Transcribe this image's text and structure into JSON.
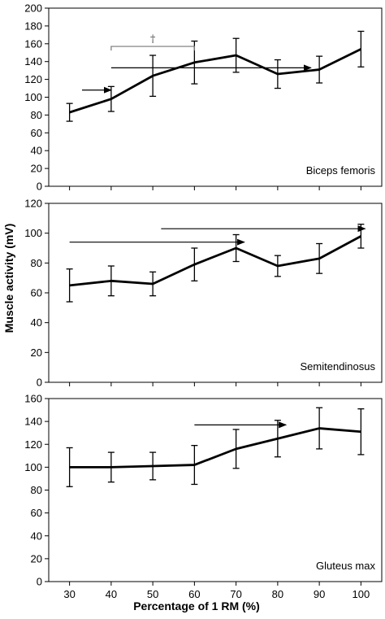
{
  "chart_data": {
    "type": "line",
    "ylabel": "Muscle activity (mV)",
    "xlabel": "Percentage of 1 RM (%)",
    "x": [
      30,
      40,
      50,
      60,
      70,
      80,
      90,
      100
    ],
    "xlim": [
      25,
      105
    ],
    "panels": [
      {
        "label": "Biceps femoris",
        "ylim": [
          0,
          200
        ],
        "yticks": [
          0,
          20,
          40,
          60,
          80,
          100,
          120,
          140,
          160,
          180,
          200
        ],
        "values": [
          83,
          98,
          124,
          139,
          147,
          126,
          131,
          154
        ],
        "errors": [
          10,
          14,
          23,
          24,
          19,
          16,
          15,
          20
        ],
        "arrows": [
          {
            "from": 33,
            "to": 40,
            "y": 108
          },
          {
            "from": 40,
            "to": 88,
            "y": 133
          }
        ],
        "bracket": {
          "from": 40,
          "to": 60,
          "y": 157,
          "symbol": "†"
        }
      },
      {
        "label": "Semitendinosus",
        "ylim": [
          0,
          120
        ],
        "yticks": [
          0,
          20,
          40,
          60,
          80,
          100,
          120
        ],
        "values": [
          65,
          68,
          66,
          79,
          90,
          78,
          83,
          98
        ],
        "errors": [
          11,
          10,
          8,
          11,
          9,
          7,
          10,
          8
        ],
        "arrows": [
          {
            "from": 30,
            "to": 72,
            "y": 94
          },
          {
            "from": 52,
            "to": 101,
            "y": 103
          }
        ]
      },
      {
        "label": "Gluteus max",
        "ylim": [
          0,
          160
        ],
        "yticks": [
          0,
          20,
          40,
          60,
          80,
          100,
          120,
          140,
          160
        ],
        "values": [
          100,
          100,
          101,
          102,
          116,
          125,
          134,
          131
        ],
        "errors": [
          17,
          13,
          12,
          17,
          17,
          16,
          18,
          20
        ],
        "arrows": [
          {
            "from": 60,
            "to": 82,
            "y": 137
          }
        ]
      }
    ]
  }
}
